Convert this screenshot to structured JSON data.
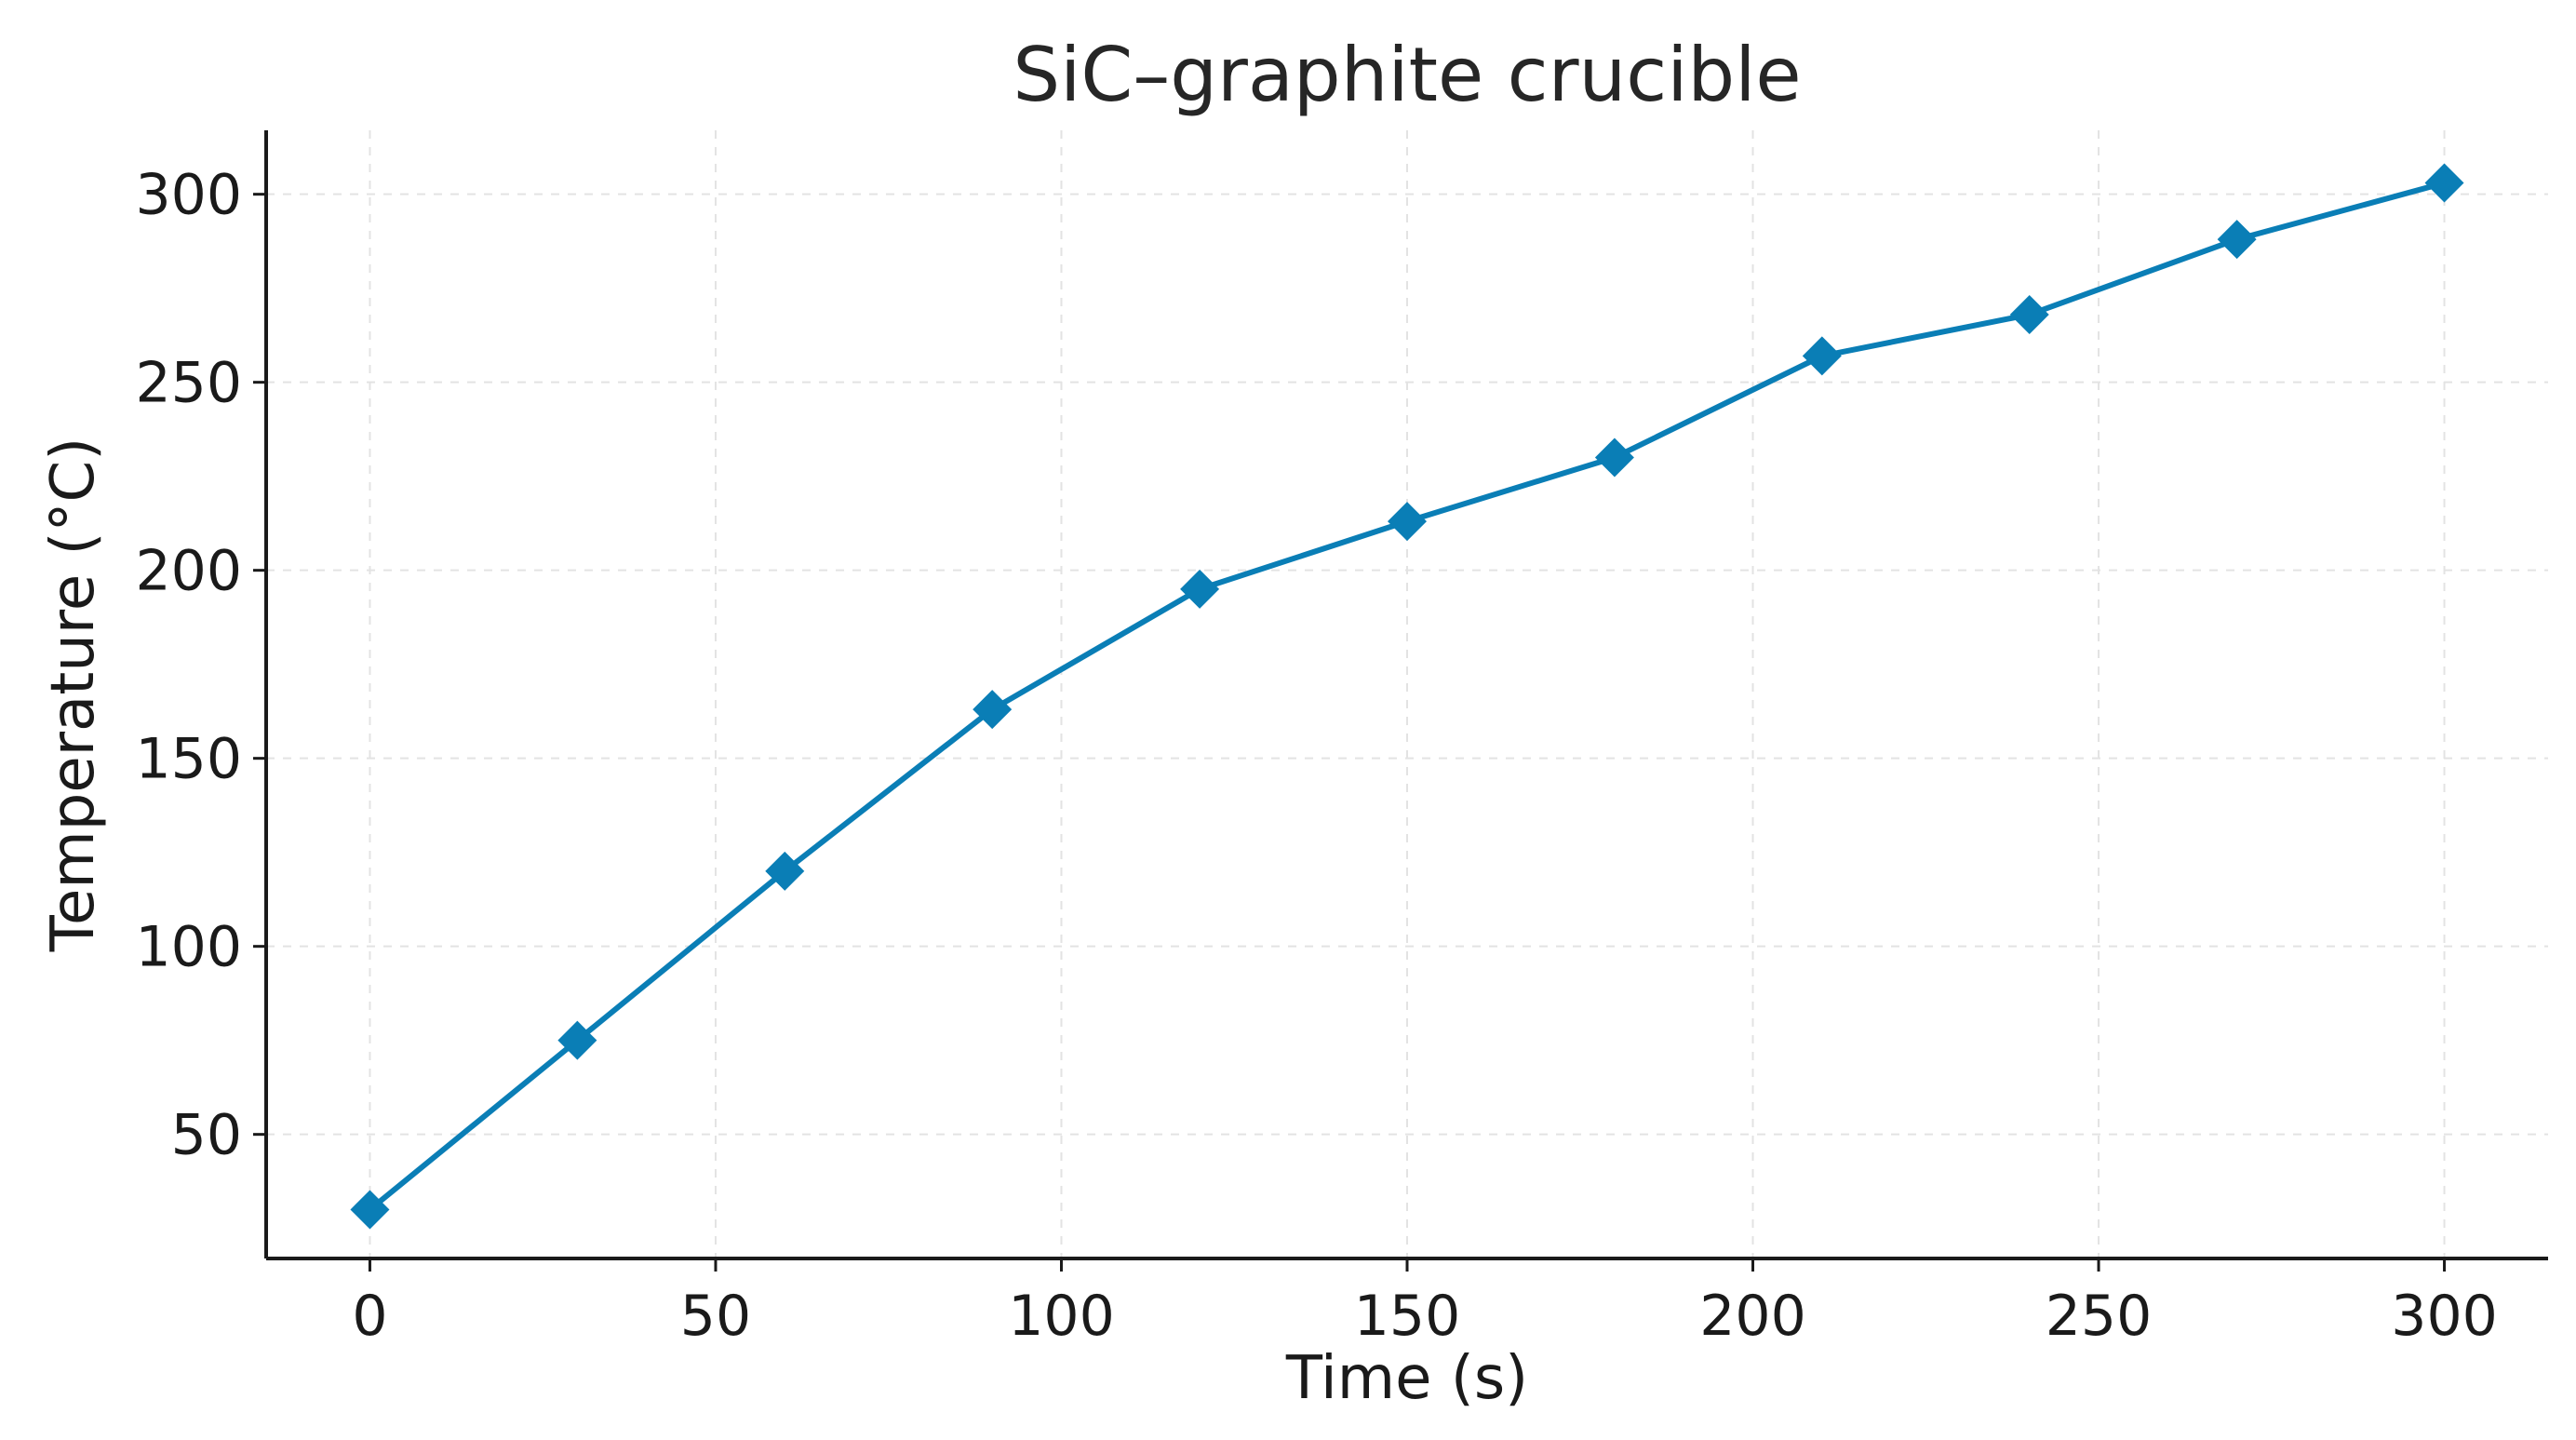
{
  "chart_data": {
    "type": "line",
    "title": "SiC–graphite crucible",
    "xlabel": "Time (s)",
    "ylabel": "Temperature (°C)",
    "xlim": [
      -15,
      315
    ],
    "ylim": [
      17,
      317
    ],
    "xticks": [
      0,
      50,
      100,
      150,
      200,
      250,
      300
    ],
    "yticks": [
      50,
      100,
      150,
      200,
      250,
      300
    ],
    "grid": true,
    "legend": "none",
    "marker": "diamond",
    "color": "#0A7EB6",
    "series": [
      {
        "x": [
          0,
          30,
          60,
          90,
          120,
          150,
          180,
          210,
          240,
          270,
          300
        ],
        "y": [
          30,
          75,
          120,
          163,
          195,
          213,
          230,
          257,
          268,
          288,
          303
        ]
      }
    ]
  }
}
